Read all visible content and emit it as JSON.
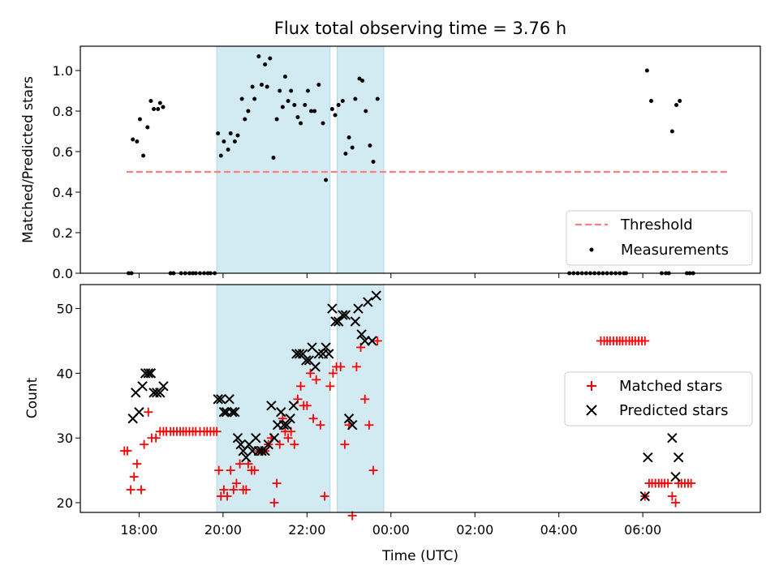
{
  "title": "Flux total observing time = 3.76 h",
  "colors": {
    "shade": "#add8e6",
    "threshold": "#ff7f7f",
    "matched": "#ff0000",
    "predicted": "#000000",
    "measurement": "#000000"
  },
  "chart_data": [
    {
      "type": "scatter",
      "ylabel": "Matched/Predicted stars",
      "xlabel": "",
      "xlim": [
        -7.4,
        8.8
      ],
      "ylim": [
        0,
        1.12
      ],
      "yticks": [
        "0.0",
        "0.2",
        "0.4",
        "0.6",
        "0.8",
        "1.0"
      ],
      "grid": false,
      "legend_position": "lower-right",
      "shaded_intervals": [
        [
          -4.15,
          -1.45
        ],
        [
          -1.28,
          -0.17
        ]
      ],
      "threshold": {
        "name": "Threshold",
        "y": 0.5,
        "x": [
          -6.3,
          8.05
        ]
      },
      "series": [
        {
          "name": "Measurements",
          "points": [
            [
              -6.25,
              0
            ],
            [
              -6.18,
              0
            ],
            [
              -6.15,
              0.66
            ],
            [
              -6.05,
              0.65
            ],
            [
              -5.98,
              0.76
            ],
            [
              -5.9,
              0.58
            ],
            [
              -5.8,
              0.72
            ],
            [
              -5.72,
              0.85
            ],
            [
              -5.65,
              0.81
            ],
            [
              -5.55,
              0.81
            ],
            [
              -5.5,
              0.84
            ],
            [
              -5.43,
              0.82
            ],
            [
              -5.25,
              0
            ],
            [
              -5.18,
              0
            ],
            [
              -5.0,
              0
            ],
            [
              -4.9,
              0
            ],
            [
              -4.8,
              0
            ],
            [
              -4.72,
              0
            ],
            [
              -4.65,
              0
            ],
            [
              -4.55,
              0
            ],
            [
              -4.45,
              0
            ],
            [
              -4.3,
              0
            ],
            [
              -4.2,
              0
            ],
            [
              -4.36,
              0
            ],
            [
              -4.12,
              0.69
            ],
            [
              -4.05,
              0.58
            ],
            [
              -3.98,
              0.65
            ],
            [
              -3.88,
              0.61
            ],
            [
              -3.82,
              0.69
            ],
            [
              -3.72,
              0.65
            ],
            [
              -3.65,
              0.68
            ],
            [
              -3.55,
              0.86
            ],
            [
              -3.48,
              0.76
            ],
            [
              -3.4,
              0.8
            ],
            [
              -3.3,
              0.92
            ],
            [
              -3.25,
              0.86
            ],
            [
              -3.15,
              1.07
            ],
            [
              -3.08,
              0.93
            ],
            [
              -3.0,
              1.03
            ],
            [
              -2.95,
              0.92
            ],
            [
              -2.88,
              1.06
            ],
            [
              -2.8,
              0.57
            ],
            [
              -2.72,
              0.76
            ],
            [
              -2.65,
              0.9
            ],
            [
              -2.58,
              0.82
            ],
            [
              -2.52,
              0.97
            ],
            [
              -2.45,
              0.85
            ],
            [
              -2.38,
              0.9
            ],
            [
              -2.3,
              0.83
            ],
            [
              -2.22,
              0.77
            ],
            [
              -2.15,
              0.74
            ],
            [
              -2.05,
              0.83
            ],
            [
              -1.98,
              0.9
            ],
            [
              -1.9,
              0.8
            ],
            [
              -1.82,
              0.8
            ],
            [
              -1.72,
              0.93
            ],
            [
              -1.62,
              0.74
            ],
            [
              -1.55,
              0.46
            ],
            [
              -1.4,
              0.81
            ],
            [
              -1.33,
              0.78
            ],
            [
              -1.25,
              0.83
            ],
            [
              -1.15,
              0.85
            ],
            [
              -1.08,
              0.59
            ],
            [
              -1.0,
              0.67
            ],
            [
              -0.92,
              0.62
            ],
            [
              -0.85,
              0.86
            ],
            [
              -0.75,
              0.96
            ],
            [
              -0.68,
              0.95
            ],
            [
              -0.6,
              0.8
            ],
            [
              -0.5,
              0.63
            ],
            [
              -0.42,
              0.55
            ],
            [
              -0.32,
              0.86
            ],
            [
              4.25,
              0
            ],
            [
              4.35,
              0
            ],
            [
              4.45,
              0
            ],
            [
              4.55,
              0
            ],
            [
              4.65,
              0
            ],
            [
              4.75,
              0
            ],
            [
              4.85,
              0
            ],
            [
              4.95,
              0
            ],
            [
              5.05,
              0
            ],
            [
              5.15,
              0
            ],
            [
              5.25,
              0
            ],
            [
              5.35,
              0
            ],
            [
              5.45,
              0
            ],
            [
              5.55,
              0
            ],
            [
              5.6,
              0
            ],
            [
              6.1,
              1.0
            ],
            [
              6.2,
              0.85
            ],
            [
              6.45,
              0
            ],
            [
              6.55,
              0
            ],
            [
              6.62,
              0
            ],
            [
              6.7,
              0.7
            ],
            [
              6.8,
              0.83
            ],
            [
              6.88,
              0.85
            ],
            [
              7.05,
              0
            ],
            [
              7.12,
              0
            ],
            [
              7.2,
              0
            ]
          ]
        }
      ]
    },
    {
      "type": "scatter",
      "ylabel": "Count",
      "xlabel": "Time (UTC)",
      "xlim": [
        -7.4,
        8.8
      ],
      "ylim": [
        18.5,
        53.7
      ],
      "xticks": [
        "18:00",
        "20:00",
        "22:00",
        "00:00",
        "02:00",
        "04:00",
        "06:00"
      ],
      "yticks": [
        "20",
        "30",
        "40",
        "50"
      ],
      "grid": false,
      "legend_position": "right",
      "shaded_intervals": [
        [
          -4.15,
          -1.45
        ],
        [
          -1.28,
          -0.17
        ]
      ],
      "series": [
        {
          "name": "Matched stars",
          "points": [
            [
              -6.35,
              28
            ],
            [
              -6.28,
              28
            ],
            [
              -6.2,
              22
            ],
            [
              -6.12,
              24
            ],
            [
              -6.05,
              26
            ],
            [
              -5.95,
              22
            ],
            [
              -5.88,
              29
            ],
            [
              -5.78,
              34
            ],
            [
              -5.7,
              30
            ],
            [
              -5.6,
              30
            ],
            [
              -5.5,
              31
            ],
            [
              -5.42,
              31
            ],
            [
              -5.35,
              31
            ],
            [
              -5.25,
              31
            ],
            [
              -5.18,
              31
            ],
            [
              -5.1,
              31
            ],
            [
              -5.02,
              31
            ],
            [
              -4.95,
              31
            ],
            [
              -4.88,
              31
            ],
            [
              -4.8,
              31
            ],
            [
              -4.72,
              31
            ],
            [
              -4.65,
              31
            ],
            [
              -4.55,
              31
            ],
            [
              -4.45,
              31
            ],
            [
              -4.38,
              31
            ],
            [
              -4.3,
              31
            ],
            [
              -4.22,
              31
            ],
            [
              -4.15,
              31
            ],
            [
              -4.1,
              25
            ],
            [
              -4.05,
              21
            ],
            [
              -3.98,
              22
            ],
            [
              -3.9,
              21
            ],
            [
              -3.82,
              25
            ],
            [
              -3.75,
              22
            ],
            [
              -3.68,
              23
            ],
            [
              -3.6,
              26
            ],
            [
              -3.52,
              22
            ],
            [
              -3.45,
              22
            ],
            [
              -3.4,
              26
            ],
            [
              -3.32,
              25
            ],
            [
              -3.25,
              25
            ],
            [
              -3.15,
              28
            ],
            [
              -3.08,
              28
            ],
            [
              -3.0,
              28
            ],
            [
              -2.92,
              29
            ],
            [
              -2.85,
              30
            ],
            [
              -2.78,
              20
            ],
            [
              -2.72,
              23
            ],
            [
              -2.65,
              29
            ],
            [
              -2.58,
              33
            ],
            [
              -2.52,
              31
            ],
            [
              -2.45,
              30
            ],
            [
              -2.38,
              31
            ],
            [
              -2.3,
              29
            ],
            [
              -2.22,
              36
            ],
            [
              -2.15,
              38
            ],
            [
              -2.08,
              35
            ],
            [
              -2.0,
              35
            ],
            [
              -1.92,
              40
            ],
            [
              -1.85,
              33
            ],
            [
              -1.78,
              39
            ],
            [
              -1.68,
              32
            ],
            [
              -1.58,
              21
            ],
            [
              -1.45,
              38
            ],
            [
              -1.38,
              40
            ],
            [
              -1.3,
              41
            ],
            [
              -1.2,
              41
            ],
            [
              -1.1,
              29
            ],
            [
              -1.0,
              32
            ],
            [
              -0.92,
              18
            ],
            [
              -0.82,
              41
            ],
            [
              -0.72,
              44
            ],
            [
              -0.62,
              36
            ],
            [
              -0.52,
              32
            ],
            [
              -0.42,
              25
            ],
            [
              -0.32,
              45
            ],
            [
              5.0,
              45
            ],
            [
              5.08,
              45
            ],
            [
              5.15,
              45
            ],
            [
              5.22,
              45
            ],
            [
              5.3,
              45
            ],
            [
              5.38,
              45
            ],
            [
              5.45,
              45
            ],
            [
              5.52,
              45
            ],
            [
              5.6,
              45
            ],
            [
              5.68,
              45
            ],
            [
              5.75,
              45
            ],
            [
              5.82,
              45
            ],
            [
              5.9,
              45
            ],
            [
              5.98,
              45
            ],
            [
              6.05,
              45
            ],
            [
              6.05,
              21
            ],
            [
              6.15,
              23
            ],
            [
              6.22,
              23
            ],
            [
              6.3,
              23
            ],
            [
              6.38,
              23
            ],
            [
              6.45,
              23
            ],
            [
              6.52,
              23
            ],
            [
              6.6,
              23
            ],
            [
              6.7,
              21
            ],
            [
              6.78,
              20
            ],
            [
              6.85,
              23
            ],
            [
              6.92,
              23
            ],
            [
              7.0,
              23
            ],
            [
              7.08,
              23
            ],
            [
              7.15,
              23
            ]
          ]
        },
        {
          "name": "Predicted stars",
          "points": [
            [
              -6.15,
              33
            ],
            [
              -6.08,
              37
            ],
            [
              -6.0,
              34
            ],
            [
              -5.92,
              38
            ],
            [
              -5.85,
              40
            ],
            [
              -5.78,
              40
            ],
            [
              -5.72,
              40
            ],
            [
              -5.65,
              37
            ],
            [
              -5.58,
              37
            ],
            [
              -5.5,
              37
            ],
            [
              -5.42,
              38
            ],
            [
              -4.12,
              36
            ],
            [
              -4.05,
              36
            ],
            [
              -3.98,
              34
            ],
            [
              -3.92,
              34
            ],
            [
              -3.85,
              36
            ],
            [
              -3.78,
              34
            ],
            [
              -3.72,
              34
            ],
            [
              -3.65,
              30
            ],
            [
              -3.58,
              29
            ],
            [
              -3.52,
              28
            ],
            [
              -3.45,
              27
            ],
            [
              -3.38,
              29
            ],
            [
              -3.3,
              28
            ],
            [
              -3.22,
              30
            ],
            [
              -3.15,
              28
            ],
            [
              -3.08,
              28
            ],
            [
              -3.0,
              28
            ],
            [
              -2.92,
              29
            ],
            [
              -2.85,
              35
            ],
            [
              -2.78,
              30
            ],
            [
              -2.7,
              32
            ],
            [
              -2.62,
              34
            ],
            [
              -2.55,
              32
            ],
            [
              -2.48,
              32
            ],
            [
              -2.4,
              33
            ],
            [
              -2.32,
              35
            ],
            [
              -2.25,
              43
            ],
            [
              -2.18,
              43
            ],
            [
              -2.1,
              43
            ],
            [
              -2.02,
              42
            ],
            [
              -1.95,
              42
            ],
            [
              -1.88,
              44
            ],
            [
              -1.8,
              41
            ],
            [
              -1.72,
              43
            ],
            [
              -1.62,
              43
            ],
            [
              -1.55,
              44
            ],
            [
              -1.48,
              43
            ],
            [
              -1.4,
              50
            ],
            [
              -1.32,
              48
            ],
            [
              -1.25,
              48
            ],
            [
              -1.15,
              49
            ],
            [
              -1.08,
              49
            ],
            [
              -1.0,
              33
            ],
            [
              -0.92,
              32
            ],
            [
              -0.85,
              48
            ],
            [
              -0.78,
              50
            ],
            [
              -0.7,
              46
            ],
            [
              -0.62,
              45
            ],
            [
              -0.55,
              51
            ],
            [
              -0.45,
              45
            ],
            [
              -0.35,
              52
            ],
            [
              6.05,
              21
            ],
            [
              6.12,
              27
            ],
            [
              6.7,
              30
            ],
            [
              6.78,
              24
            ],
            [
              6.85,
              27
            ]
          ]
        }
      ]
    }
  ]
}
